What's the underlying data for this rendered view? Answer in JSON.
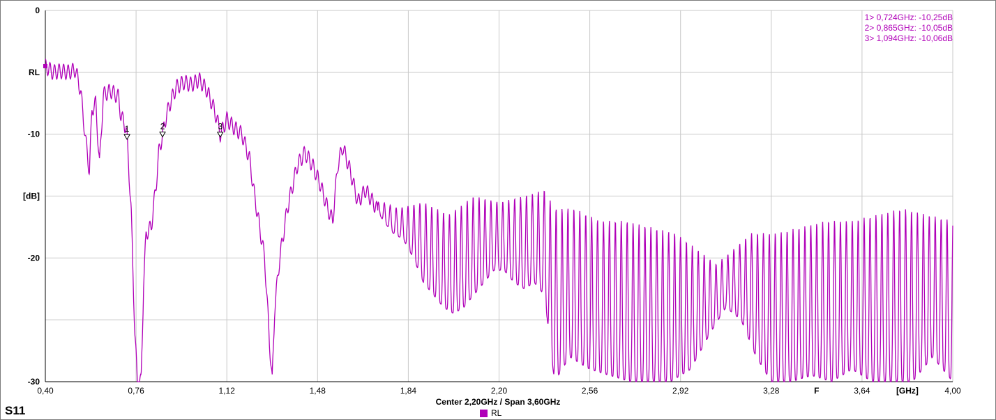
{
  "window": {
    "parameter": "S11",
    "center_span": "Center 2,20GHz / Span 3,60GHz"
  },
  "legend": {
    "entries": [
      {
        "label": "RL",
        "color": "#b000b8"
      }
    ]
  },
  "markers": [
    {
      "label": "1",
      "readout": "1> 0,724GHz: -10,25dB",
      "freq": 0.724,
      "db": -10.25
    },
    {
      "label": "2",
      "readout": "2> 0,865GHz: -10,05dB",
      "freq": 0.865,
      "db": -10.05
    },
    {
      "label": "3",
      "readout": "3> 1,094GHz: -10,06dB",
      "freq": 1.094,
      "db": -10.06
    }
  ],
  "chart_data": {
    "type": "line",
    "title": "",
    "xlabel": "[GHz]",
    "ylabel": "[dB]",
    "ref_label": "RL",
    "center_marker_label": "F",
    "xlim": [
      0.4,
      4.0
    ],
    "ylim": [
      -30,
      0
    ],
    "x_ticks": [
      "0,40",
      "0,76",
      "1,12",
      "1,48",
      "1,84",
      "2,20",
      "2,56",
      "2,92",
      "3,28",
      "3,64",
      "4,00"
    ],
    "y_ticks": [
      {
        "value": 0,
        "label": "0"
      },
      {
        "value": -5,
        "label": "RL"
      },
      {
        "value": -10,
        "label": "-10"
      },
      {
        "value": -15,
        "label": "[dB]"
      },
      {
        "value": -20,
        "label": "-20"
      },
      {
        "value": -30,
        "label": "-30"
      }
    ],
    "grid": true,
    "series": [
      {
        "name": "RL",
        "color": "#b000b8",
        "points": [
          [
            0.4,
            -4.5
          ],
          [
            0.43,
            -5.0
          ],
          [
            0.46,
            -4.9
          ],
          [
            0.49,
            -5.0
          ],
          [
            0.52,
            -4.8
          ],
          [
            0.54,
            -6.5
          ],
          [
            0.56,
            -10.5
          ],
          [
            0.575,
            -13.0
          ],
          [
            0.585,
            -8.0
          ],
          [
            0.6,
            -7.5
          ],
          [
            0.615,
            -12.5
          ],
          [
            0.63,
            -6.8
          ],
          [
            0.66,
            -6.5
          ],
          [
            0.69,
            -7.0
          ],
          [
            0.7,
            -8.5
          ],
          [
            0.72,
            -9.5
          ],
          [
            0.724,
            -10.25
          ],
          [
            0.74,
            -16.0
          ],
          [
            0.755,
            -26.0
          ],
          [
            0.765,
            -30.0
          ],
          [
            0.78,
            -30.0
          ],
          [
            0.79,
            -22.0
          ],
          [
            0.8,
            -18.0
          ],
          [
            0.82,
            -17.5
          ],
          [
            0.84,
            -14.0
          ],
          [
            0.85,
            -11.5
          ],
          [
            0.865,
            -10.05
          ],
          [
            0.88,
            -8.5
          ],
          [
            0.9,
            -7.2
          ],
          [
            0.92,
            -6.2
          ],
          [
            0.95,
            -5.8
          ],
          [
            0.98,
            -6.0
          ],
          [
            1.01,
            -5.6
          ],
          [
            1.04,
            -6.4
          ],
          [
            1.07,
            -8.0
          ],
          [
            1.09,
            -9.5
          ],
          [
            1.094,
            -10.06
          ],
          [
            1.12,
            -8.8
          ],
          [
            1.15,
            -9.5
          ],
          [
            1.18,
            -10.0
          ],
          [
            1.21,
            -12.0
          ],
          [
            1.23,
            -15.0
          ],
          [
            1.25,
            -17.5
          ],
          [
            1.27,
            -20.0
          ],
          [
            1.29,
            -27.0
          ],
          [
            1.3,
            -30.0
          ],
          [
            1.31,
            -24.0
          ],
          [
            1.33,
            -20.0
          ],
          [
            1.36,
            -16.0
          ],
          [
            1.4,
            -12.5
          ],
          [
            1.43,
            -11.5
          ],
          [
            1.46,
            -12.5
          ],
          [
            1.49,
            -14.0
          ],
          [
            1.52,
            -16.0
          ],
          [
            1.54,
            -17.0
          ],
          [
            1.56,
            -12.5
          ],
          [
            1.58,
            -11.0
          ],
          [
            1.61,
            -13.0
          ],
          [
            1.64,
            -15.5
          ],
          [
            1.67,
            -14.5
          ],
          [
            1.7,
            -15.5
          ],
          [
            1.74,
            -17.0
          ],
          [
            1.78,
            -18.0
          ],
          [
            1.82,
            -18.5
          ],
          [
            1.86,
            -20.0
          ],
          [
            1.9,
            -22.0
          ],
          [
            1.94,
            -23.0
          ],
          [
            1.98,
            -24.0
          ],
          [
            2.02,
            -24.5
          ],
          [
            2.06,
            -24.0
          ],
          [
            2.1,
            -23.0
          ],
          [
            2.14,
            -22.0
          ],
          [
            2.18,
            -21.0
          ],
          [
            2.22,
            -21.0
          ],
          [
            2.26,
            -22.0
          ],
          [
            2.3,
            -22.5
          ],
          [
            2.34,
            -22.0
          ],
          [
            2.38,
            -23.0
          ],
          [
            2.42,
            -30.0
          ],
          [
            2.48,
            -28.0
          ],
          [
            2.56,
            -29.0
          ],
          [
            2.64,
            -29.5
          ],
          [
            2.72,
            -30.0
          ],
          [
            2.8,
            -30.0
          ],
          [
            2.88,
            -30.0
          ],
          [
            2.96,
            -29.0
          ],
          [
            3.04,
            -26.0
          ],
          [
            3.1,
            -24.0
          ],
          [
            3.16,
            -25.0
          ],
          [
            3.22,
            -28.0
          ],
          [
            3.28,
            -30.0
          ],
          [
            3.36,
            -30.0
          ],
          [
            3.44,
            -29.5
          ],
          [
            3.52,
            -30.0
          ],
          [
            3.6,
            -29.0
          ],
          [
            3.68,
            -30.0
          ],
          [
            3.76,
            -30.0
          ],
          [
            3.84,
            -30.0
          ],
          [
            3.92,
            -28.0
          ],
          [
            4.0,
            -30.0
          ]
        ],
        "upper_envelope": [
          [
            1.74,
            -15.5
          ],
          [
            1.8,
            -16.0
          ],
          [
            1.9,
            -15.5
          ],
          [
            2.0,
            -16.5
          ],
          [
            2.1,
            -15.0
          ],
          [
            2.2,
            -15.5
          ],
          [
            2.3,
            -15.0
          ],
          [
            2.38,
            -14.5
          ],
          [
            2.42,
            -16.0
          ],
          [
            2.5,
            -16.0
          ],
          [
            2.6,
            -17.0
          ],
          [
            2.7,
            -17.0
          ],
          [
            2.8,
            -17.5
          ],
          [
            2.9,
            -18.0
          ],
          [
            3.0,
            -19.5
          ],
          [
            3.06,
            -20.5
          ],
          [
            3.12,
            -19.5
          ],
          [
            3.2,
            -18.0
          ],
          [
            3.3,
            -18.0
          ],
          [
            3.4,
            -17.5
          ],
          [
            3.5,
            -17.0
          ],
          [
            3.6,
            -17.0
          ],
          [
            3.7,
            -16.5
          ],
          [
            3.8,
            -16.0
          ],
          [
            3.9,
            -16.5
          ],
          [
            4.0,
            -17.0
          ]
        ],
        "ripple_period_ghz": 0.0235
      }
    ]
  }
}
